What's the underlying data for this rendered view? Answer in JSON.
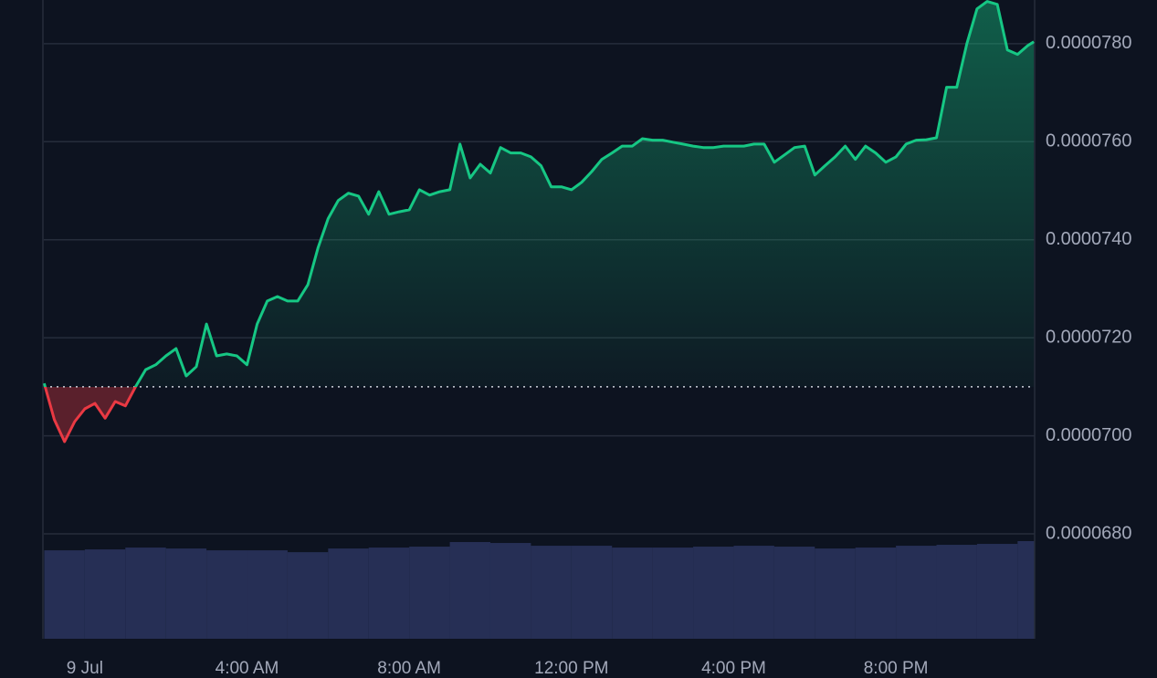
{
  "chart_data": {
    "type": "baseline",
    "x": [
      -1,
      -0.75,
      -0.5,
      -0.25,
      0,
      0.25,
      0.5,
      0.75,
      1,
      1.25,
      1.5,
      1.75,
      2,
      2.25,
      2.5,
      2.75,
      3,
      3.25,
      3.5,
      3.75,
      4,
      4.25,
      4.5,
      4.75,
      5,
      5.25,
      5.5,
      5.75,
      6,
      6.25,
      6.5,
      6.75,
      7,
      7.25,
      7.5,
      7.75,
      8,
      8.25,
      8.5,
      8.75,
      9,
      9.25,
      9.5,
      9.75,
      10,
      10.25,
      10.5,
      10.75,
      11,
      11.25,
      11.5,
      11.75,
      12,
      12.25,
      12.5,
      12.75,
      13,
      13.25,
      13.5,
      13.75,
      14,
      14.25,
      14.5,
      14.75,
      15,
      15.25,
      15.5,
      15.75,
      16,
      16.25,
      16.5,
      16.75,
      17,
      17.25,
      17.5,
      17.75,
      18,
      18.25,
      18.5,
      18.75,
      19,
      19.25,
      19.5,
      19.75,
      20,
      20.25,
      20.5,
      20.75,
      21,
      21.25,
      21.5,
      21.75,
      22,
      22.25,
      22.5,
      22.75,
      23,
      23.25,
      23.4
    ],
    "values": [
      7.107e-05,
      7.033e-05,
      6.988e-05,
      7.029e-05,
      7.055e-05,
      7.066e-05,
      7.036e-05,
      7.07e-05,
      7.061e-05,
      7.1e-05,
      7.135e-05,
      7.145e-05,
      7.163e-05,
      7.178e-05,
      7.122e-05,
      7.141e-05,
      7.228e-05,
      7.163e-05,
      7.167e-05,
      7.163e-05,
      7.145e-05,
      7.228e-05,
      7.275e-05,
      7.284e-05,
      7.275e-05,
      7.275e-05,
      7.308e-05,
      7.383e-05,
      7.443e-05,
      7.48e-05,
      7.495e-05,
      7.489e-05,
      7.452e-05,
      7.498e-05,
      7.452e-05,
      7.457e-05,
      7.461e-05,
      7.502e-05,
      7.491e-05,
      7.498e-05,
      7.502e-05,
      7.595e-05,
      7.526e-05,
      7.554e-05,
      7.536e-05,
      7.588e-05,
      7.577e-05,
      7.577e-05,
      7.569e-05,
      7.551e-05,
      7.508e-05,
      7.508e-05,
      7.502e-05,
      7.517e-05,
      7.539e-05,
      7.564e-05,
      7.577e-05,
      7.591e-05,
      7.591e-05,
      7.606e-05,
      7.603e-05,
      7.603e-05,
      7.599e-05,
      7.595e-05,
      7.591e-05,
      7.588e-05,
      7.588e-05,
      7.591e-05,
      7.591e-05,
      7.591e-05,
      7.595e-05,
      7.595e-05,
      7.558e-05,
      7.573e-05,
      7.588e-05,
      7.591e-05,
      7.532e-05,
      7.551e-05,
      7.569e-05,
      7.591e-05,
      7.564e-05,
      7.591e-05,
      7.577e-05,
      7.558e-05,
      7.569e-05,
      7.595e-05,
      7.603e-05,
      7.604e-05,
      7.608e-05,
      7.711e-05,
      7.711e-05,
      7.8e-05,
      7.871e-05,
      7.886e-05,
      7.88e-05,
      7.787e-05,
      7.778e-05,
      7.796e-05,
      7.804e-05
    ],
    "baseline": 7.1e-05,
    "up_color": "#16c784",
    "down_color": "#ea3943",
    "xlim": [
      -1.01,
      23.42
    ],
    "ylim": [
      6.586e-05,
      7.889e-05
    ],
    "xticks": [
      {
        "value": 0,
        "label": "9 Jul"
      },
      {
        "value": 4,
        "label": "4:00 AM"
      },
      {
        "value": 8,
        "label": "8:00 AM"
      },
      {
        "value": 12,
        "label": "12:00 PM"
      },
      {
        "value": 16,
        "label": "4:00 PM"
      },
      {
        "value": 20,
        "label": "8:00 PM"
      }
    ],
    "yticks": [
      {
        "value": 6.8e-05,
        "label": "0.0000680"
      },
      {
        "value": 7e-05,
        "label": "0.0000700"
      },
      {
        "value": 7.2e-05,
        "label": "0.0000720"
      },
      {
        "value": 7.4e-05,
        "label": "0.0000740"
      },
      {
        "value": 7.6e-05,
        "label": "0.0000760"
      },
      {
        "value": 7.8e-05,
        "label": "0.0000780"
      }
    ],
    "grid": true,
    "volume": {
      "x": [
        -1,
        0,
        1,
        2,
        3,
        4,
        5,
        6,
        7,
        8,
        9,
        10,
        11,
        12,
        13,
        14,
        15,
        16,
        17,
        18,
        19,
        20,
        21,
        22,
        23
      ],
      "values": [
        96,
        97,
        99,
        98,
        96,
        96,
        94,
        98,
        99,
        100,
        105,
        104,
        101,
        101,
        99,
        99,
        100,
        101,
        100,
        98,
        99,
        101,
        102,
        103,
        106
      ],
      "color": "#262f55"
    }
  }
}
